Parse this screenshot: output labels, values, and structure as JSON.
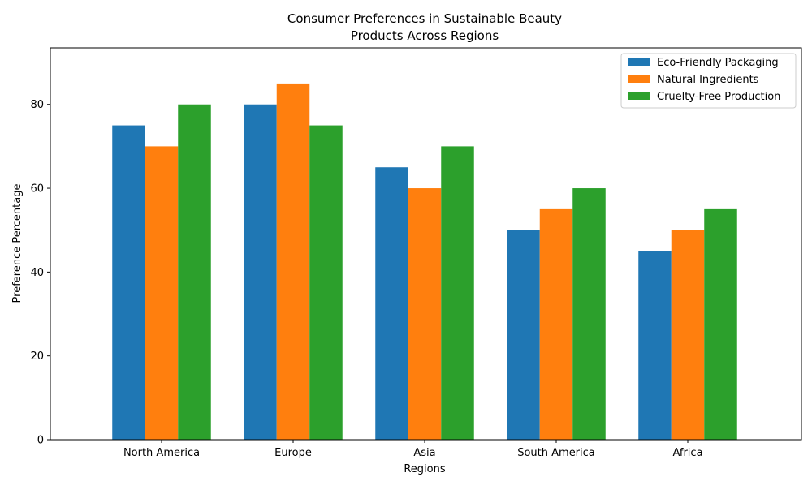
{
  "chart_data": {
    "type": "bar",
    "title_lines": [
      "Consumer Preferences in Sustainable Beauty",
      "Products Across Regions"
    ],
    "xlabel": "Regions",
    "ylabel": "Preference Percentage",
    "categories": [
      "North America",
      "Europe",
      "Asia",
      "South America",
      "Africa"
    ],
    "series": [
      {
        "name": "Eco-Friendly Packaging",
        "color": "#1f77b4",
        "values": [
          75,
          80,
          65,
          50,
          45
        ]
      },
      {
        "name": "Natural Ingredients",
        "color": "#ff7f0e",
        "values": [
          70,
          85,
          60,
          55,
          50
        ]
      },
      {
        "name": "Cruelty-Free Production",
        "color": "#2ca02c",
        "values": [
          80,
          75,
          70,
          60,
          55
        ]
      }
    ],
    "ylim": [
      0,
      93.5
    ],
    "yticks": [
      0,
      20,
      40,
      60,
      80
    ],
    "grid": false,
    "legend": "top-right"
  }
}
